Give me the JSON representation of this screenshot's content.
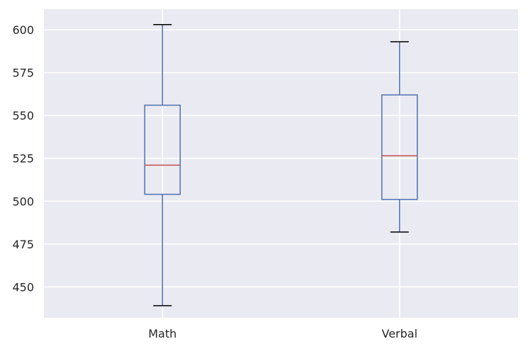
{
  "chart_data": {
    "type": "box",
    "title": "",
    "xlabel": "",
    "ylabel": "",
    "categories": [
      "Math",
      "Verbal"
    ],
    "ylim": [
      432,
      612
    ],
    "yticks": [
      450,
      475,
      500,
      525,
      550,
      575,
      600
    ],
    "grid": true,
    "boxes": [
      {
        "name": "Math",
        "whisker_low": 439,
        "q1": 504,
        "median": 521,
        "q3": 556,
        "whisker_high": 603
      },
      {
        "name": "Verbal",
        "whisker_low": 482,
        "q1": 501,
        "median": 526.5,
        "q3": 562,
        "whisker_high": 593
      }
    ],
    "colors": {
      "background": "#eaeaf2",
      "grid": "#ffffff",
      "box": "#4c72b0",
      "median": "#c44e52",
      "whisker_cap": "#000000"
    }
  }
}
